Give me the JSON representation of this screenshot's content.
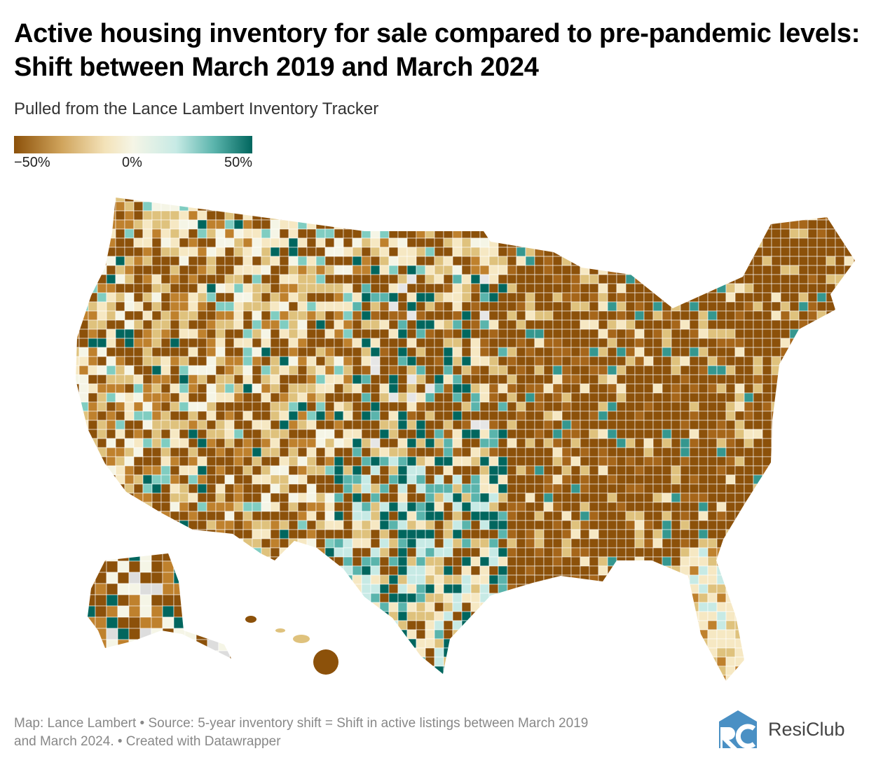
{
  "header": {
    "title": "Active housing inventory for sale compared to pre-pandemic levels: Shift between March 2019 and March 2024",
    "subtitle": "Pulled from the Lance Lambert Inventory Tracker"
  },
  "legend": {
    "labels": [
      "−50%",
      "0%",
      "50%"
    ],
    "min": -50,
    "max": 50,
    "colors": [
      "#8c510a",
      "#d0a45c",
      "#f3e2b8",
      "#f5f5e6",
      "#c7eae5",
      "#5ab4ac",
      "#01665e"
    ]
  },
  "footer": {
    "line1": "Map: Lance Lambert • Source: 5-year inventory shift = Shift in active listings between March 2019",
    "line2": "and March 2024.  • Created with Datawrapper"
  },
  "logo": {
    "text": "ResiClub",
    "color": "#4a90c4"
  }
}
